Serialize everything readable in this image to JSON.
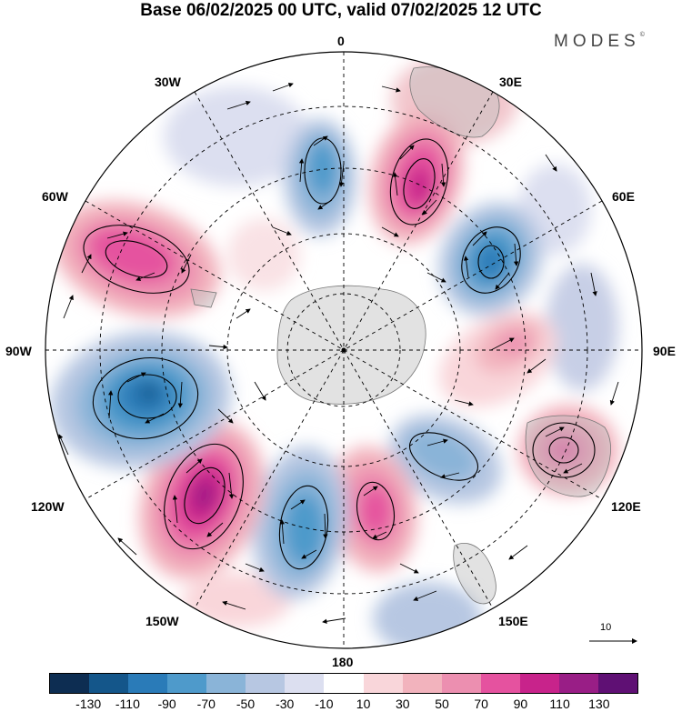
{
  "title": "Base 06/02/2025 00 UTC, valid 07/02/2025 12 UTC",
  "brand": "MODES",
  "brand_mark": "©",
  "longitudes": {
    "lon_0": "0",
    "lon_30e": "30E",
    "lon_60e": "60E",
    "lon_90e": "90E",
    "lon_120e": "120E",
    "lon_150e": "150E",
    "lon_180": "180",
    "lon_150w": "150W",
    "lon_120w": "120W",
    "lon_90w": "90W",
    "lon_60w": "60W",
    "lon_30w": "30W"
  },
  "reference_vector": "10",
  "colorbar": {
    "colors": [
      "#0d2d52",
      "#14568a",
      "#2a7bb8",
      "#4e9acb",
      "#8ab4d8",
      "#b7c7e2",
      "#dcdff0",
      "#ffffff",
      "#f9d6da",
      "#f2b3bd",
      "#ec8fb0",
      "#e5529f",
      "#c8238b",
      "#991e86",
      "#5f1074"
    ],
    "ticks": [
      "-130",
      "-110",
      "-90",
      "-70",
      "-50",
      "-30",
      "-10",
      "10",
      "30",
      "50",
      "70",
      "90",
      "110",
      "130"
    ]
  }
}
